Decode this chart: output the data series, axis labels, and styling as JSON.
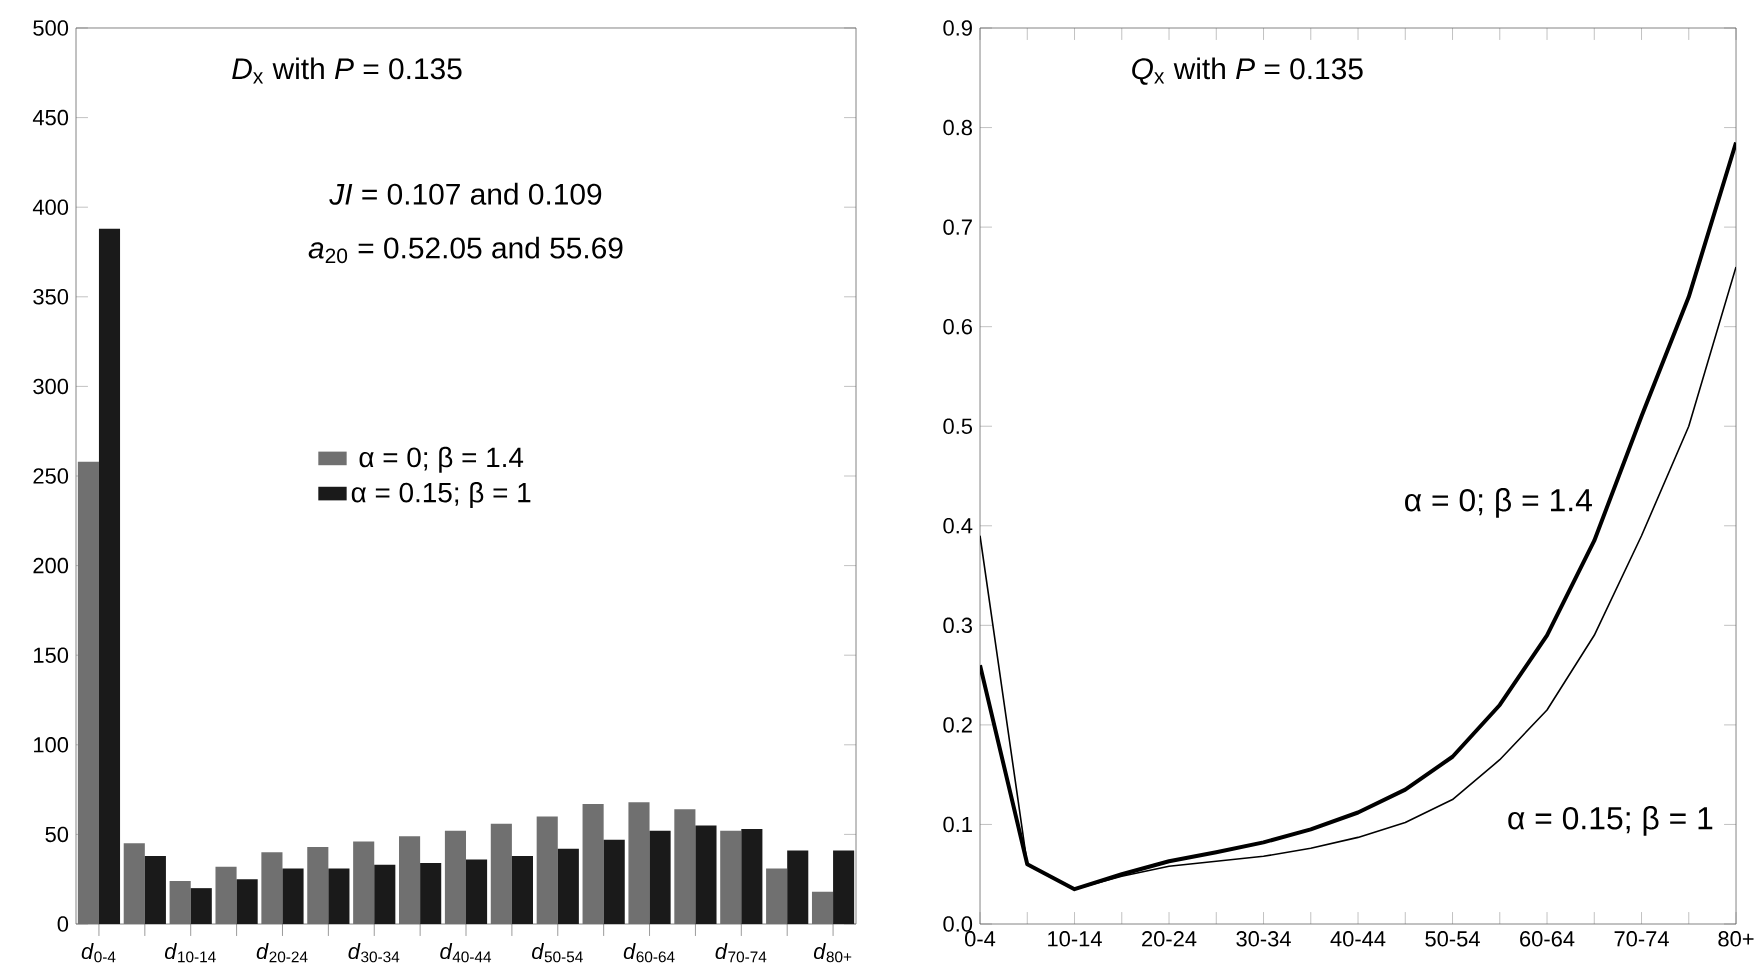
{
  "chart_data": [
    {
      "type": "bar",
      "title": "*D*$_{x}$ with *P* = 0.135",
      "annotations": [
        "*JI* = 0.107 and 0.109",
        "*a*$_{20}$ = 0.52.05 and 55.69"
      ],
      "categories": [
        "*d*$_{0-4}$",
        null,
        "*d*$_{10-14}$",
        null,
        "*d*$_{20-24}$",
        null,
        "*d*$_{30-34}$",
        null,
        "*d*$_{40-44}$",
        null,
        "*d*$_{50-54}$",
        null,
        "*d*$_{60-64}$",
        null,
        "*d*$_{70-74}$",
        null,
        "*d*$_{80+}$"
      ],
      "series": [
        {
          "name": "α = 0; β = 1.4",
          "color": "#707070",
          "values": [
            258,
            45,
            24,
            32,
            40,
            43,
            46,
            49,
            52,
            56,
            60,
            67,
            68,
            64,
            52,
            31,
            18
          ]
        },
        {
          "name": "α = 0.15; β = 1",
          "color": "#1a1a1a",
          "values": [
            388,
            38,
            20,
            25,
            31,
            31,
            33,
            34,
            36,
            38,
            42,
            47,
            52,
            55,
            53,
            41,
            41
          ]
        }
      ],
      "ylim": [
        0,
        500
      ],
      "yticks": [
        0,
        50,
        100,
        150,
        200,
        250,
        300,
        350,
        400,
        450,
        500
      ],
      "legend": "center"
    },
    {
      "type": "line",
      "title": "*Q*$_{x}$ with *P* = 0.135",
      "categories": [
        "0-4",
        null,
        "10-14",
        null,
        "20-24",
        null,
        "30-34",
        null,
        "40-44",
        null,
        "50-54",
        null,
        "60-64",
        null,
        "70-74",
        null,
        "80+"
      ],
      "series": [
        {
          "name": "α = 0; β = 1.4",
          "color": "#000000",
          "values": [
            0.26,
            0.06,
            0.035,
            0.05,
            0.063,
            0.072,
            0.082,
            0.095,
            0.112,
            0.135,
            0.168,
            0.22,
            0.29,
            0.385,
            0.51,
            0.63,
            0.785
          ]
        },
        {
          "name": "α = 0.15; β = 1",
          "color": "#000000",
          "values": [
            0.39,
            0.06,
            0.035,
            0.048,
            0.058,
            0.063,
            0.068,
            0.076,
            0.087,
            0.102,
            0.125,
            0.165,
            0.215,
            0.29,
            0.39,
            0.5,
            0.66
          ]
        }
      ],
      "ylim": [
        0,
        0.9
      ],
      "yticks": [
        {
          "value": 0,
          "label": "0.0"
        },
        0.1,
        0.2,
        0.3,
        0.4,
        0.5,
        0.6,
        0.7,
        0.8,
        0.9
      ]
    }
  ]
}
